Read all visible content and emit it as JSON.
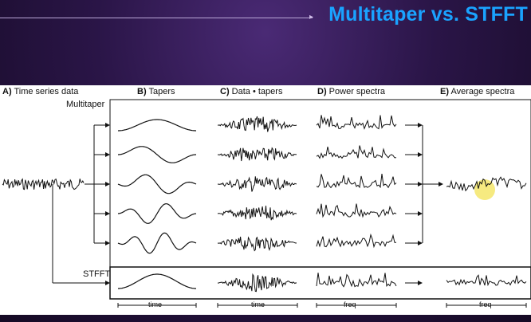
{
  "slide": {
    "title": "Multitaper vs. STFFT"
  },
  "figure": {
    "headers": [
      {
        "letter": "A)",
        "text": "Time series data"
      },
      {
        "letter": "B)",
        "text": "Tapers"
      },
      {
        "letter": "C)",
        "text": "Data • tapers"
      },
      {
        "letter": "D)",
        "text": "Power spectra"
      },
      {
        "letter": "E)",
        "text": "Average spectra"
      }
    ],
    "row_labels": {
      "multitaper": "Multitaper",
      "stfft": "STFFT"
    },
    "axis_labels": {
      "tapers": "time",
      "data_tapers": "time",
      "spectra": "freq",
      "average": "freq"
    },
    "taper_count": 5,
    "highlight_color": "#f5e66a",
    "line_color": "#111111"
  }
}
